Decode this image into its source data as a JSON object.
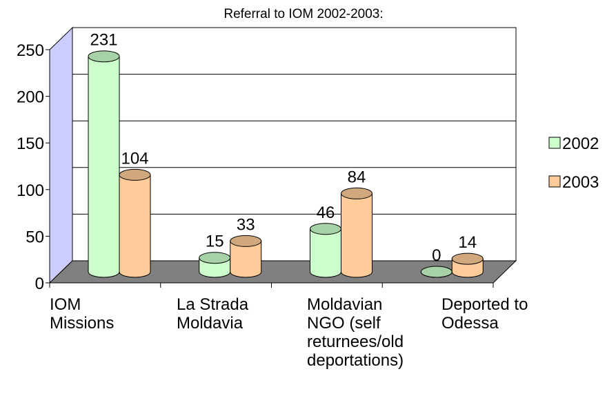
{
  "chart_data": {
    "type": "bar3d",
    "title": "Referral to IOM 2002-2003:",
    "categories": [
      "IOM Missions",
      "La Strada Moldavia",
      "Moldavian NGO (self returnees/old deportations)",
      "Deported to Odessa"
    ],
    "series": [
      {
        "name": "2002",
        "color": "#ccffcc",
        "values": [
          231,
          15,
          46,
          0
        ]
      },
      {
        "name": "2003",
        "color": "#ffcc99",
        "values": [
          104,
          33,
          84,
          14
        ]
      }
    ],
    "ylim": [
      0,
      250
    ],
    "yticks": [
      0,
      50,
      100,
      150,
      200,
      250
    ],
    "grid": true,
    "legend": "right",
    "wall_color": "#ccccff",
    "floor_color": "#808080"
  }
}
